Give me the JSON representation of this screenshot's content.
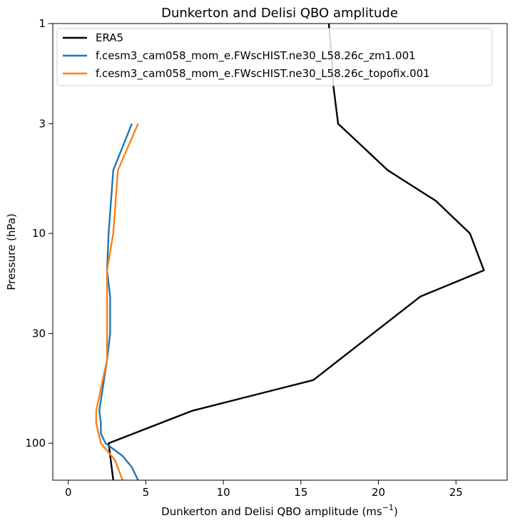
{
  "chart_data": {
    "type": "line",
    "title": "Dunkerton and Delisi QBO amplitude",
    "xlabel": "Dunkerton and Delisi QBO amplitude (ms",
    "xlabel_superscript": "−1",
    "xlabel_close": ")",
    "ylabel": "Pressure (hPa)",
    "xlim": [
      -1,
      28.3
    ],
    "ylim": [
      150,
      1
    ],
    "y_scale": "log",
    "y_inverted": true,
    "grid": false,
    "legend_position": "upper-left",
    "x_ticks": [
      0,
      5,
      10,
      15,
      20,
      25
    ],
    "x_tick_labels": [
      "0",
      "5",
      "10",
      "15",
      "20",
      "25"
    ],
    "y_ticks": [
      1,
      3,
      10,
      30,
      100
    ],
    "y_tick_labels": [
      "1",
      "3",
      "10",
      "30",
      "100"
    ],
    "series": [
      {
        "name": "ERA5",
        "color": "#000000",
        "points": [
          [
            16.8,
            1
          ],
          [
            17.0,
            1.5
          ],
          [
            17.1,
            2
          ],
          [
            17.4,
            3
          ],
          [
            20.6,
            5
          ],
          [
            23.7,
            7
          ],
          [
            25.9,
            10
          ],
          [
            26.8,
            15
          ],
          [
            22.7,
            20
          ],
          [
            15.8,
            50
          ],
          [
            8.0,
            70
          ],
          [
            2.6,
            100
          ],
          [
            2.9,
            150
          ]
        ]
      },
      {
        "name": "f.cesm3_cam058_mom_e.FWscHIST.ne30_L58.26c_zm1.001",
        "color": "#1f77b4",
        "points": [
          [
            4.1,
            3
          ],
          [
            2.9,
            5
          ],
          [
            2.6,
            10
          ],
          [
            2.5,
            15
          ],
          [
            2.7,
            20
          ],
          [
            2.7,
            30
          ],
          [
            2.5,
            40
          ],
          [
            2.0,
            70
          ],
          [
            2.1,
            80
          ],
          [
            2.1,
            90
          ],
          [
            2.4,
            100
          ],
          [
            3.5,
            115
          ],
          [
            4.1,
            130
          ],
          [
            4.5,
            150
          ]
        ]
      },
      {
        "name": "f.cesm3_cam058_mom_e.FWscHIST.ne30_L58.26c_topofix.001",
        "color": "#ff7f0e",
        "points": [
          [
            4.5,
            3
          ],
          [
            3.2,
            5
          ],
          [
            2.9,
            10
          ],
          [
            2.5,
            15
          ],
          [
            2.5,
            30
          ],
          [
            2.5,
            40
          ],
          [
            1.8,
            70
          ],
          [
            1.8,
            80
          ],
          [
            2.1,
            100
          ],
          [
            3.0,
            120
          ],
          [
            3.5,
            150
          ]
        ]
      }
    ]
  }
}
